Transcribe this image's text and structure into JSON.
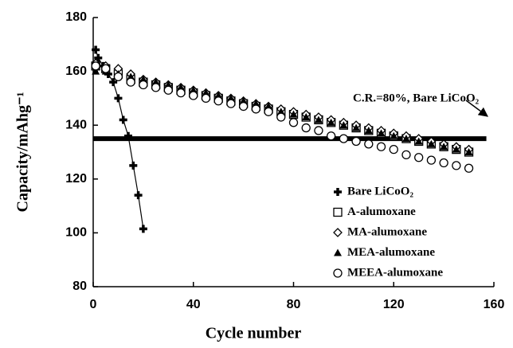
{
  "chart_data": {
    "type": "line",
    "xlabel": "Cycle number",
    "ylabel": "Capacity/mAhg⁻¹",
    "annotation": "C.R.=80%, Bare LiCoO₂",
    "hline": 135,
    "xlim": [
      0,
      160
    ],
    "xticks": [
      0,
      40,
      80,
      120,
      160
    ],
    "ylim": [
      80,
      180
    ],
    "yticks": [
      80,
      100,
      120,
      140,
      160,
      180
    ],
    "legend": "lower-right",
    "series": [
      {
        "name": "Bare LiCoO₂",
        "color": "#000000",
        "marker": "cross",
        "connect": true,
        "x": [
          1,
          2,
          4,
          6,
          8,
          10,
          12,
          14,
          16,
          18,
          20
        ],
        "values": [
          168,
          165,
          162,
          159,
          156,
          150,
          142,
          136,
          125,
          114,
          101.5
        ]
      },
      {
        "name": "A-alumoxane",
        "color": "#000000",
        "marker": "square",
        "connect": false,
        "x": [
          1,
          5,
          10,
          15,
          20,
          25,
          30,
          35,
          40,
          45,
          50,
          55,
          60,
          65,
          70,
          75,
          80,
          85,
          90,
          95,
          100,
          105,
          110,
          115,
          120,
          125,
          130,
          135,
          140,
          145,
          150
        ],
        "values": [
          162,
          161,
          159,
          157,
          156,
          155,
          154,
          153,
          152,
          151,
          150,
          149,
          148,
          147,
          146,
          145,
          144,
          143,
          142,
          141,
          140,
          139,
          138,
          137,
          136,
          135,
          134,
          133,
          132,
          131,
          130
        ]
      },
      {
        "name": "MA-alumoxane",
        "color": "#000000",
        "marker": "diamond",
        "connect": false,
        "x": [
          1,
          5,
          10,
          15,
          20,
          25,
          30,
          35,
          40,
          45,
          50,
          55,
          60,
          65,
          70,
          75,
          80,
          85,
          90,
          95,
          100,
          105,
          110,
          115,
          120,
          125,
          130,
          135,
          140,
          145,
          150
        ],
        "values": [
          163,
          162,
          161,
          159,
          157,
          156,
          155,
          154,
          153,
          152,
          151,
          150,
          149,
          148,
          147,
          146,
          145,
          144,
          143,
          142,
          141,
          140,
          139,
          138,
          137,
          136,
          135,
          134,
          133,
          132,
          131
        ]
      },
      {
        "name": "MEA-alumoxane",
        "color": "#000000",
        "marker": "triangle",
        "connect": false,
        "x": [
          1,
          5,
          10,
          15,
          20,
          25,
          30,
          35,
          40,
          45,
          50,
          55,
          60,
          65,
          70,
          75,
          80,
          85,
          90,
          95,
          100,
          105,
          110,
          115,
          120,
          125,
          130,
          135,
          140,
          145,
          150
        ],
        "values": [
          160,
          160,
          159,
          158,
          157,
          156,
          155,
          154,
          153,
          152,
          151,
          150,
          149,
          148,
          147,
          145,
          144,
          143,
          142,
          141,
          140,
          139,
          138,
          137,
          136,
          135,
          134,
          133,
          132,
          131,
          130
        ]
      },
      {
        "name": "MEEA-alumoxane",
        "color": "#000000",
        "marker": "circle",
        "connect": false,
        "x": [
          1,
          5,
          10,
          15,
          20,
          25,
          30,
          35,
          40,
          45,
          50,
          55,
          60,
          65,
          70,
          75,
          80,
          85,
          90,
          95,
          100,
          105,
          110,
          115,
          120,
          125,
          130,
          135,
          140,
          145,
          150
        ],
        "values": [
          162,
          161,
          158,
          156,
          155,
          154,
          153,
          152,
          151,
          150,
          149,
          148,
          147,
          146,
          145,
          143,
          141,
          139,
          138,
          136,
          135,
          134,
          133,
          132,
          131,
          129,
          128,
          127,
          126,
          125,
          124
        ]
      }
    ]
  }
}
